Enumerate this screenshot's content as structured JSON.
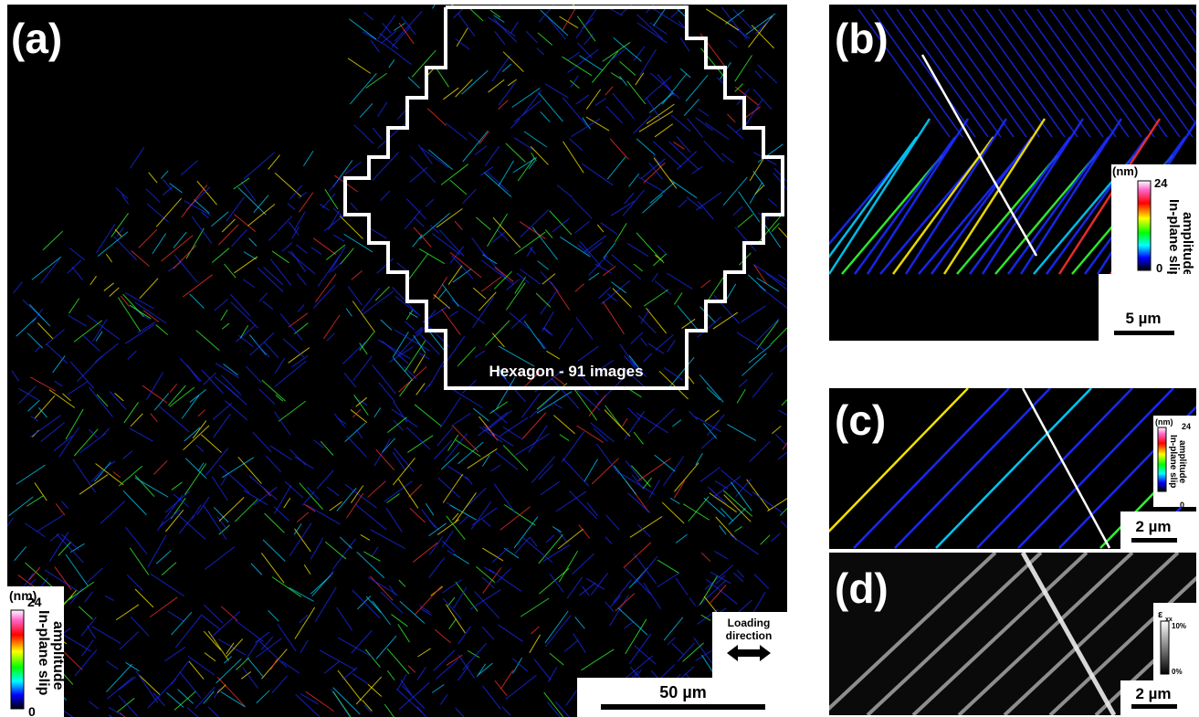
{
  "panels": [
    {
      "label": "(a)",
      "scale_bar": "50 µm",
      "inset": "Hexagon - 91 images",
      "arrow_label": [
        "Loading",
        "direction"
      ],
      "colorbar": {
        "unit": "(nm)",
        "max": "24",
        "min": "0",
        "title": [
          "In-plane slip",
          "amplitude"
        ]
      }
    },
    {
      "label": "(b)",
      "scale_bar": "5 µm",
      "colorbar": {
        "unit": "(nm)",
        "max": "24",
        "min": "0",
        "title": [
          "In-plane slip",
          "amplitude"
        ]
      }
    },
    {
      "label": "(c)",
      "scale_bar": "2 µm",
      "colorbar": {
        "unit": "(nm)",
        "max": "24",
        "min": "0",
        "title": [
          "In-plane slip",
          "amplitude"
        ]
      }
    },
    {
      "label": "(d)",
      "scale_bar": "2 µm",
      "colorbar": {
        "symbol": "ε",
        "subscript": "xx",
        "max": "10%",
        "min": "0%"
      }
    }
  ]
}
